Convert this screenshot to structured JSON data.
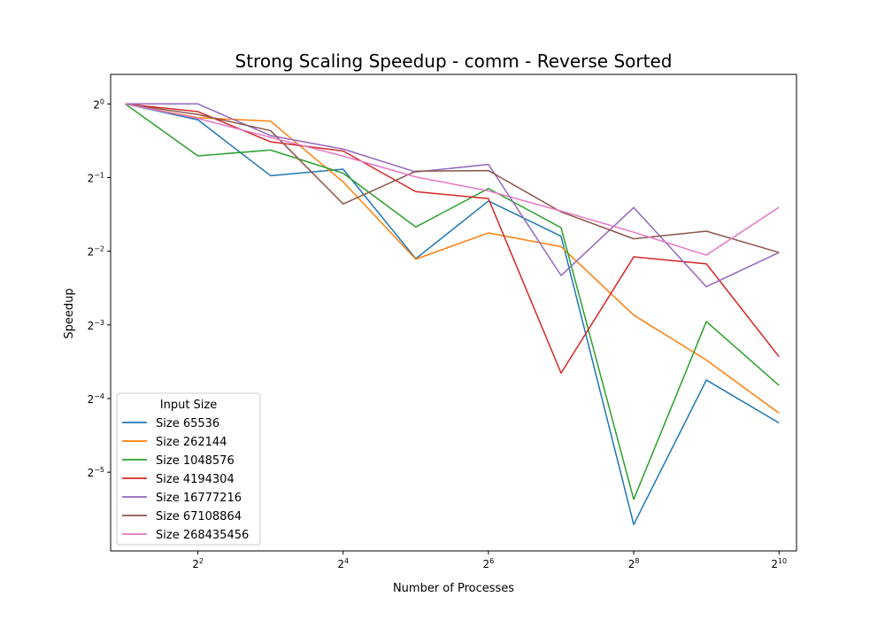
{
  "chart_data": {
    "type": "line",
    "title": "Strong Scaling Speedup - comm - Reverse Sorted",
    "xlabel": "Number of Processes",
    "ylabel": "Speedup",
    "x_scale": "log2",
    "y_scale": "log2",
    "xlim": [
      1.74,
      1210
    ],
    "ylim": [
      0.0149,
      1.32
    ],
    "x_ticks": [
      {
        "value": 4,
        "base": "2",
        "exp": "2"
      },
      {
        "value": 16,
        "base": "2",
        "exp": "4"
      },
      {
        "value": 64,
        "base": "2",
        "exp": "6"
      },
      {
        "value": 256,
        "base": "2",
        "exp": "8"
      },
      {
        "value": 1024,
        "base": "2",
        "exp": "10"
      }
    ],
    "y_ticks": [
      {
        "value": 1,
        "base": "2",
        "exp": "0"
      },
      {
        "value": 0.5,
        "base": "2",
        "exp": "−1"
      },
      {
        "value": 0.25,
        "base": "2",
        "exp": "−2"
      },
      {
        "value": 0.125,
        "base": "2",
        "exp": "−3"
      },
      {
        "value": 0.0625,
        "base": "2",
        "exp": "−4"
      },
      {
        "value": 0.03125,
        "base": "2",
        "exp": "−5"
      }
    ],
    "grid": false,
    "legend": {
      "title": "Input Size",
      "placement": "lower-left"
    },
    "x": [
      2,
      4,
      8,
      16,
      32,
      64,
      128,
      256,
      512,
      1024
    ],
    "series": [
      {
        "name": "Size 65536",
        "color": "#1f77b4",
        "values": [
          1.0,
          0.861,
          0.509,
          0.541,
          0.233,
          0.401,
          0.288,
          0.0191,
          0.0744,
          0.0497
        ]
      },
      {
        "name": "Size 262144",
        "color": "#ff7f0e",
        "values": [
          1.0,
          0.878,
          0.85,
          0.48,
          0.232,
          0.297,
          0.261,
          0.137,
          0.0898,
          0.0545
        ]
      },
      {
        "name": "Size 1048576",
        "color": "#2ca02c",
        "values": [
          1.0,
          0.613,
          0.648,
          0.521,
          0.314,
          0.451,
          0.312,
          0.0242,
          0.129,
          0.0707
        ]
      },
      {
        "name": "Size 4194304",
        "color": "#d62728",
        "values": [
          1.0,
          0.93,
          0.7,
          0.642,
          0.438,
          0.41,
          0.0794,
          0.237,
          0.222,
          0.0927
        ]
      },
      {
        "name": "Size 16777216",
        "color": "#9467bd",
        "values": [
          1.0,
          1.0,
          0.742,
          0.654,
          0.527,
          0.566,
          0.199,
          0.377,
          0.179,
          0.247
        ]
      },
      {
        "name": "Size 67108864",
        "color": "#8c564b",
        "values": [
          1.0,
          0.905,
          0.778,
          0.39,
          0.531,
          0.534,
          0.362,
          0.281,
          0.302,
          0.247
        ]
      },
      {
        "name": "Size 268435456",
        "color": "#e377c2",
        "values": [
          1.0,
          0.873,
          0.73,
          0.612,
          0.503,
          0.441,
          0.365,
          0.299,
          0.241,
          0.378
        ]
      }
    ]
  }
}
